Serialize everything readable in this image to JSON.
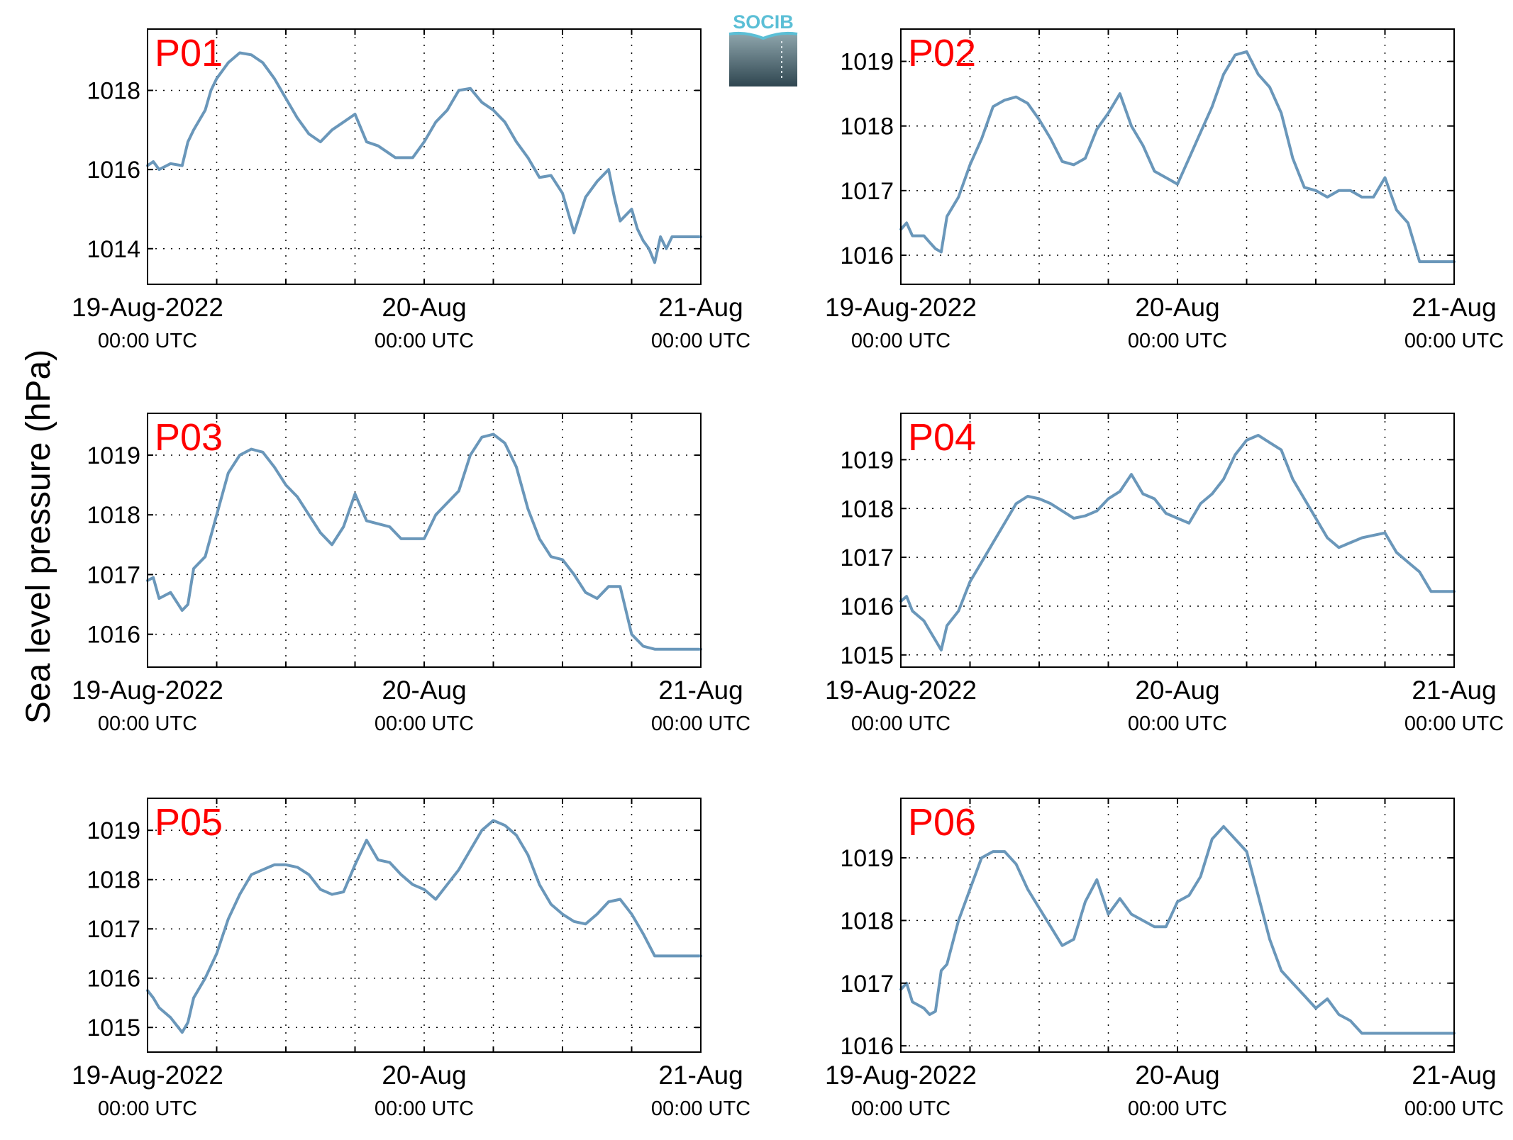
{
  "figure": {
    "ylabel": "Sea level pressure (hPa)",
    "logo_text": "SOCIB",
    "line_color": "#6a97ba",
    "label_color": "#ff0000"
  },
  "chart_data": [
    {
      "type": "line",
      "panel_label": "P01",
      "xlabel": "",
      "ylabel": "Sea level pressure (hPa)",
      "x_ticks": [
        {
          "x": 0,
          "label": "19-Aug-2022",
          "sublabel": "00:00 UTC"
        },
        {
          "x": 24,
          "label": "20-Aug",
          "sublabel": "00:00 UTC"
        },
        {
          "x": 48,
          "label": "21-Aug",
          "sublabel": "00:00 UTC"
        }
      ],
      "x_grid": [
        6,
        12,
        18,
        30,
        36,
        42
      ],
      "xlim": [
        0,
        48
      ],
      "ylim": [
        1013.1,
        1019.55
      ],
      "y_ticks": [
        1014,
        1016,
        1018
      ],
      "grid": true,
      "x": [
        0,
        0.5,
        1,
        2,
        3,
        3.5,
        4,
        5,
        5.5,
        6,
        7,
        8,
        9,
        9.5,
        10,
        11,
        12,
        13,
        14,
        15,
        16,
        17,
        18,
        19,
        20,
        21,
        21.5,
        22,
        23,
        24,
        25,
        26,
        27,
        28,
        29,
        30,
        31,
        32,
        33,
        34,
        35,
        36,
        37,
        38,
        39,
        40,
        40.5,
        41,
        42,
        42.5,
        43,
        43.5,
        44,
        44.5,
        45,
        45.5,
        46,
        46.5,
        47,
        47.5,
        48
      ],
      "y": [
        1016.1,
        1016.2,
        1016.0,
        1016.15,
        1016.1,
        1016.7,
        1017.0,
        1017.5,
        1018.0,
        1018.3,
        1018.7,
        1018.95,
        1018.9,
        1018.8,
        1018.7,
        1018.3,
        1017.8,
        1017.3,
        1016.9,
        1016.7,
        1017.0,
        1017.2,
        1017.4,
        1016.7,
        1016.6,
        1016.4,
        1016.3,
        1016.3,
        1016.3,
        1016.7,
        1017.2,
        1017.5,
        1018.0,
        1018.05,
        1017.7,
        1017.5,
        1017.2,
        1016.7,
        1016.3,
        1015.8,
        1015.85,
        1015.4,
        1014.4,
        1015.3,
        1015.7,
        1016.0,
        1015.3,
        1014.7,
        1015.0,
        1014.5,
        1014.2,
        1014.0,
        1013.65,
        1014.3,
        1014.0,
        1014.3,
        1014.3,
        1014.3,
        1014.3,
        1014.3,
        1014.3
      ]
    },
    {
      "type": "line",
      "panel_label": "P02",
      "xlabel": "",
      "ylabel": "",
      "x_ticks": [
        {
          "x": 0,
          "label": "19-Aug-2022",
          "sublabel": "00:00 UTC"
        },
        {
          "x": 24,
          "label": "20-Aug",
          "sublabel": "00:00 UTC"
        },
        {
          "x": 48,
          "label": "21-Aug",
          "sublabel": "00:00 UTC"
        }
      ],
      "x_grid": [
        6,
        12,
        18,
        30,
        36,
        42
      ],
      "xlim": [
        0,
        48
      ],
      "ylim": [
        1015.55,
        1019.5
      ],
      "y_ticks": [
        1016,
        1017,
        1018,
        1019
      ],
      "grid": true,
      "x": [
        0,
        0.5,
        1,
        2,
        2.5,
        3,
        3.5,
        4,
        5,
        6,
        7,
        8,
        9,
        10,
        11,
        12,
        13,
        14,
        15,
        16,
        17,
        18,
        19,
        20,
        21,
        22,
        23,
        24,
        25,
        26,
        27,
        28,
        29,
        30,
        31,
        32,
        33,
        34,
        35,
        36,
        37,
        38,
        39,
        40,
        41,
        42,
        43,
        44,
        45,
        46,
        46.5,
        47,
        47.5,
        48
      ],
      "y": [
        1016.4,
        1016.5,
        1016.3,
        1016.3,
        1016.2,
        1016.1,
        1016.05,
        1016.6,
        1016.9,
        1017.4,
        1017.8,
        1018.3,
        1018.4,
        1018.45,
        1018.35,
        1018.1,
        1017.8,
        1017.45,
        1017.4,
        1017.5,
        1017.95,
        1018.2,
        1018.5,
        1018.0,
        1017.7,
        1017.3,
        1017.2,
        1017.1,
        1017.5,
        1017.9,
        1018.3,
        1018.8,
        1019.1,
        1019.15,
        1018.8,
        1018.6,
        1018.2,
        1017.5,
        1017.05,
        1017.0,
        1016.9,
        1017.0,
        1017.0,
        1016.9,
        1016.9,
        1017.2,
        1016.7,
        1016.5,
        1015.9,
        1015.9,
        1015.9,
        1015.9,
        1015.9,
        1015.9
      ]
    },
    {
      "type": "line",
      "panel_label": "P03",
      "xlabel": "",
      "ylabel": "",
      "x_ticks": [
        {
          "x": 0,
          "label": "19-Aug-2022",
          "sublabel": "00:00 UTC"
        },
        {
          "x": 24,
          "label": "20-Aug",
          "sublabel": "00:00 UTC"
        },
        {
          "x": 48,
          "label": "21-Aug",
          "sublabel": "00:00 UTC"
        }
      ],
      "x_grid": [
        6,
        12,
        18,
        30,
        36,
        42
      ],
      "xlim": [
        0,
        48
      ],
      "ylim": [
        1015.45,
        1019.7
      ],
      "y_ticks": [
        1016,
        1017,
        1018,
        1019
      ],
      "grid": true,
      "x": [
        0,
        0.5,
        1,
        2,
        3,
        3.5,
        4,
        5,
        6,
        7,
        8,
        9,
        10,
        11,
        12,
        13,
        14,
        15,
        16,
        17,
        18,
        19,
        20,
        21,
        22,
        23,
        24,
        25,
        26,
        27,
        28,
        29,
        30,
        31,
        32,
        33,
        34,
        35,
        36,
        37,
        38,
        39,
        40,
        41,
        42,
        43,
        44,
        45,
        45.5,
        46,
        46.5,
        47,
        48
      ],
      "y": [
        1016.9,
        1016.95,
        1016.6,
        1016.7,
        1016.4,
        1016.5,
        1017.1,
        1017.3,
        1018.0,
        1018.7,
        1019.0,
        1019.1,
        1019.05,
        1018.8,
        1018.5,
        1018.3,
        1018.0,
        1017.7,
        1017.5,
        1017.8,
        1018.35,
        1017.9,
        1017.85,
        1017.8,
        1017.6,
        1017.6,
        1017.6,
        1018.0,
        1018.2,
        1018.4,
        1019.0,
        1019.3,
        1019.35,
        1019.2,
        1018.8,
        1018.1,
        1017.6,
        1017.3,
        1017.25,
        1017.0,
        1016.7,
        1016.6,
        1016.8,
        1016.8,
        1016.0,
        1015.8,
        1015.75,
        1015.75,
        1015.75,
        1015.75,
        1015.75,
        1015.75,
        1015.75
      ]
    },
    {
      "type": "line",
      "panel_label": "P04",
      "xlabel": "",
      "ylabel": "",
      "x_ticks": [
        {
          "x": 0,
          "label": "19-Aug-2022",
          "sublabel": "00:00 UTC"
        },
        {
          "x": 24,
          "label": "20-Aug",
          "sublabel": "00:00 UTC"
        },
        {
          "x": 48,
          "label": "21-Aug",
          "sublabel": "00:00 UTC"
        }
      ],
      "x_grid": [
        6,
        12,
        18,
        30,
        36,
        42
      ],
      "xlim": [
        0,
        48
      ],
      "ylim": [
        1014.75,
        1019.95
      ],
      "y_ticks": [
        1015,
        1016,
        1017,
        1018,
        1019
      ],
      "grid": true,
      "x": [
        0,
        0.5,
        1,
        2,
        2.5,
        3,
        3.5,
        4,
        5,
        6,
        7,
        8,
        9,
        10,
        11,
        12,
        13,
        14,
        15,
        16,
        17,
        18,
        19,
        20,
        21,
        22,
        23,
        24,
        25,
        26,
        27,
        28,
        29,
        30,
        31,
        32,
        33,
        34,
        35,
        36,
        37,
        38,
        39,
        40,
        41,
        42,
        43,
        44,
        45,
        45.5,
        46,
        46.5,
        47,
        48
      ],
      "y": [
        1016.1,
        1016.2,
        1015.9,
        1015.7,
        1015.5,
        1015.3,
        1015.1,
        1015.6,
        1015.9,
        1016.5,
        1016.9,
        1017.3,
        1017.7,
        1018.1,
        1018.25,
        1018.2,
        1018.1,
        1017.95,
        1017.8,
        1017.85,
        1017.95,
        1018.2,
        1018.35,
        1018.7,
        1018.3,
        1018.2,
        1017.9,
        1017.8,
        1017.7,
        1018.1,
        1018.3,
        1018.6,
        1019.1,
        1019.4,
        1019.5,
        1019.35,
        1019.2,
        1018.6,
        1018.2,
        1017.8,
        1017.4,
        1017.2,
        1017.3,
        1017.4,
        1017.45,
        1017.5,
        1017.1,
        1016.9,
        1016.7,
        1016.5,
        1016.3,
        1016.3,
        1016.3,
        1016.3
      ]
    },
    {
      "type": "line",
      "panel_label": "P05",
      "xlabel": "",
      "ylabel": "",
      "x_ticks": [
        {
          "x": 0,
          "label": "19-Aug-2022",
          "sublabel": "00:00 UTC"
        },
        {
          "x": 24,
          "label": "20-Aug",
          "sublabel": "00:00 UTC"
        },
        {
          "x": 48,
          "label": "21-Aug",
          "sublabel": "00:00 UTC"
        }
      ],
      "x_grid": [
        6,
        12,
        18,
        30,
        36,
        42
      ],
      "xlim": [
        0,
        48
      ],
      "ylim": [
        1014.5,
        1019.65
      ],
      "y_ticks": [
        1015,
        1016,
        1017,
        1018,
        1019
      ],
      "grid": true,
      "x": [
        0,
        0.5,
        1,
        2,
        3,
        3.5,
        4,
        5,
        6,
        7,
        8,
        9,
        10,
        11,
        12,
        13,
        14,
        15,
        16,
        17,
        18,
        19,
        20,
        21,
        22,
        23,
        24,
        25,
        26,
        27,
        28,
        29,
        30,
        31,
        32,
        33,
        34,
        35,
        36,
        37,
        38,
        39,
        40,
        41,
        42,
        43,
        44,
        45,
        46,
        47,
        48
      ],
      "y": [
        1015.75,
        1015.6,
        1015.4,
        1015.2,
        1014.9,
        1015.1,
        1015.6,
        1016.0,
        1016.5,
        1017.2,
        1017.7,
        1018.1,
        1018.2,
        1018.3,
        1018.3,
        1018.25,
        1018.1,
        1017.8,
        1017.7,
        1017.75,
        1018.3,
        1018.8,
        1018.4,
        1018.35,
        1018.1,
        1017.9,
        1017.8,
        1017.6,
        1017.9,
        1018.2,
        1018.6,
        1019.0,
        1019.2,
        1019.1,
        1018.9,
        1018.5,
        1017.9,
        1017.5,
        1017.3,
        1017.15,
        1017.1,
        1017.3,
        1017.55,
        1017.6,
        1017.3,
        1016.9,
        1016.45,
        1016.45,
        1016.45,
        1016.45,
        1016.45
      ]
    },
    {
      "type": "line",
      "panel_label": "P06",
      "xlabel": "",
      "ylabel": "",
      "x_ticks": [
        {
          "x": 0,
          "label": "19-Aug-2022",
          "sublabel": "00:00 UTC"
        },
        {
          "x": 24,
          "label": "20-Aug",
          "sublabel": "00:00 UTC"
        },
        {
          "x": 48,
          "label": "21-Aug",
          "sublabel": "00:00 UTC"
        }
      ],
      "x_grid": [
        6,
        12,
        18,
        30,
        36,
        42
      ],
      "xlim": [
        0,
        48
      ],
      "ylim": [
        1015.9,
        1019.95
      ],
      "y_ticks": [
        1016,
        1017,
        1018,
        1019
      ],
      "grid": true,
      "x": [
        0,
        0.5,
        1,
        2,
        2.5,
        3,
        3.5,
        4,
        5,
        6,
        7,
        8,
        9,
        10,
        11,
        12,
        13,
        14,
        15,
        16,
        17,
        18,
        19,
        20,
        21,
        22,
        23,
        24,
        25,
        26,
        27,
        28,
        29,
        30,
        31,
        32,
        33,
        34,
        35,
        36,
        37,
        38,
        39,
        40,
        41,
        42,
        43,
        44,
        45,
        46,
        47,
        48
      ],
      "y": [
        1016.9,
        1017.0,
        1016.7,
        1016.6,
        1016.5,
        1016.55,
        1017.2,
        1017.3,
        1018.0,
        1018.5,
        1019.0,
        1019.1,
        1019.1,
        1018.9,
        1018.5,
        1018.2,
        1017.9,
        1017.6,
        1017.7,
        1018.3,
        1018.65,
        1018.1,
        1018.35,
        1018.1,
        1018.0,
        1017.9,
        1017.9,
        1018.3,
        1018.4,
        1018.7,
        1019.3,
        1019.5,
        1019.3,
        1019.1,
        1018.4,
        1017.7,
        1017.2,
        1017.0,
        1016.8,
        1016.6,
        1016.75,
        1016.5,
        1016.4,
        1016.2,
        1016.2,
        1016.2,
        1016.2,
        1016.2,
        1016.2,
        1016.2,
        1016.2,
        1016.2
      ]
    }
  ]
}
